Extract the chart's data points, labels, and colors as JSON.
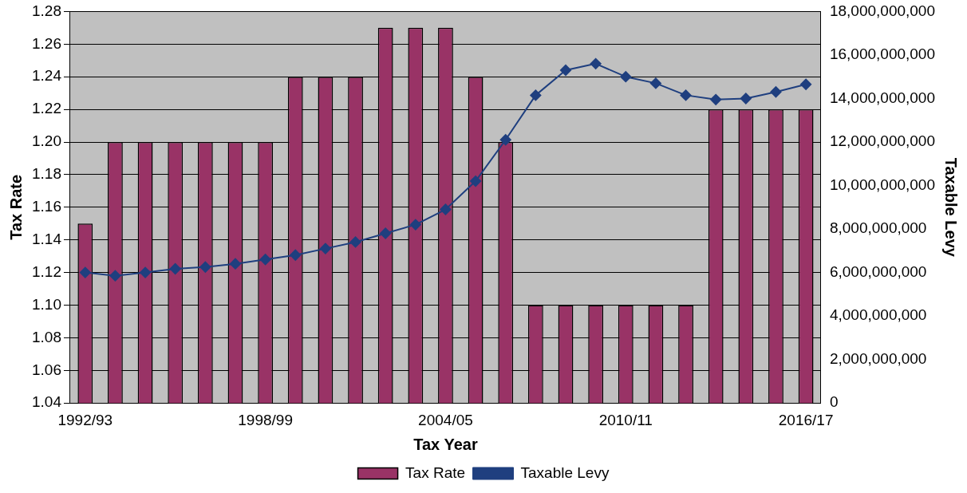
{
  "chart_data": {
    "type": "bar",
    "xlabel": "Tax Year",
    "ylabel": "Tax Rate",
    "y2label": "Taxable Levy",
    "categories": [
      "1992/93",
      null,
      null,
      null,
      null,
      null,
      "1998/99",
      null,
      null,
      null,
      null,
      null,
      "2004/05",
      null,
      null,
      null,
      null,
      null,
      "2010/11",
      null,
      null,
      null,
      null,
      null,
      "2016/17"
    ],
    "series": [
      {
        "name": "Tax Rate",
        "color": "#993366",
        "values": [
          1.15,
          1.2,
          1.2,
          1.2,
          1.2,
          1.2,
          1.2,
          1.24,
          1.24,
          1.24,
          1.27,
          1.27,
          1.27,
          1.24,
          1.2,
          1.1,
          1.1,
          1.1,
          1.1,
          1.1,
          1.1,
          1.22,
          1.22,
          1.22,
          1.22
        ]
      },
      {
        "name": "Taxable Levy",
        "type": "line",
        "axis": "y2",
        "color": "#1f3f7f",
        "marker": "diamond",
        "values": [
          6000000000,
          5850000000,
          6000000000,
          6170000000,
          6250000000,
          6400000000,
          6600000000,
          6800000000,
          7100000000,
          7400000000,
          7800000000,
          8200000000,
          8900000000,
          10200000000,
          12100000000,
          14150000000,
          15300000000,
          15600000000,
          15000000000,
          14700000000,
          14150000000,
          13950000000,
          14000000000,
          14300000000,
          14650000000
        ]
      }
    ],
    "ylim": [
      1.04,
      1.28
    ],
    "yticks": [
      {
        "value": 1.04,
        "label": "1.04"
      },
      {
        "value": 1.06,
        "label": "1.06"
      },
      {
        "value": 1.08,
        "label": "1.08"
      },
      {
        "value": 1.1,
        "label": "1.10"
      },
      {
        "value": 1.12,
        "label": "1.12"
      },
      {
        "value": 1.14,
        "label": "1.14"
      },
      {
        "value": 1.16,
        "label": "1.16"
      },
      {
        "value": 1.18,
        "label": "1.18"
      },
      {
        "value": 1.2,
        "label": "1.20"
      },
      {
        "value": 1.22,
        "label": "1.22"
      },
      {
        "value": 1.24,
        "label": "1.24"
      },
      {
        "value": 1.26,
        "label": "1.26"
      },
      {
        "value": 1.28,
        "label": "1.28"
      }
    ],
    "y2lim": [
      0,
      18000000000
    ],
    "y2ticks": [
      0,
      {
        "value": 2000000000,
        "label": "2,000,000,000"
      },
      {
        "value": 4000000000,
        "label": "4,000,000,000"
      },
      {
        "value": 6000000000,
        "label": "6,000,000,000"
      },
      {
        "value": 8000000000,
        "label": "8,000,000,000"
      },
      {
        "value": 10000000000,
        "label": "10,000,000,000"
      },
      {
        "value": 12000000000,
        "label": "12,000,000,000"
      },
      {
        "value": 14000000000,
        "label": "14,000,000,000"
      },
      {
        "value": 16000000000,
        "label": "16,000,000,000"
      },
      {
        "value": 18000000000,
        "label": "18,000,000,000"
      }
    ],
    "grid": "y",
    "legend": "bottom"
  }
}
